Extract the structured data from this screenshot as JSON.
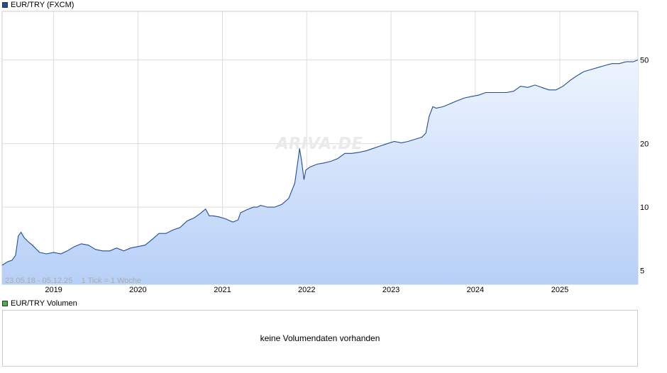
{
  "legend": {
    "main": "EUR/TRY (FXCM)",
    "main_color": "#1f4e9c",
    "volume": "EUR/TRY Volumen",
    "volume_color": "#4caf50"
  },
  "watermark": "ARIVA.DE",
  "info_text": "23.05.18 - 05.12.25    1 Tick = 1 Woche",
  "volume_panel": {
    "message": "keine Volumendaten vorhanden"
  },
  "colors": {
    "line": "#1f4e9c",
    "fill_top": "#eef4fe",
    "fill_bottom": "#b7d0f7",
    "grid": "#dddddd"
  },
  "chart_data": {
    "type": "area",
    "yscale": "log",
    "ylim": [
      4.3,
      85
    ],
    "y_ticks": [
      5,
      10,
      20,
      50
    ],
    "xlim": [
      "2018-05-23",
      "2025-12-05"
    ],
    "x_ticks": [
      {
        "label": "2019",
        "date": "2019-01-01"
      },
      {
        "label": "2020",
        "date": "2020-01-01"
      },
      {
        "label": "2021",
        "date": "2021-01-01"
      },
      {
        "label": "2022",
        "date": "2022-01-01"
      },
      {
        "label": "2023",
        "date": "2023-01-01"
      },
      {
        "label": "2024",
        "date": "2024-01-01"
      },
      {
        "label": "2025",
        "date": "2025-01-01"
      }
    ],
    "series": [
      {
        "x": [
          "2018-05-23",
          "2018-06-15",
          "2018-07-05",
          "2018-07-20",
          "2018-08-01",
          "2018-08-13",
          "2018-08-25",
          "2018-09-10",
          "2018-10-01",
          "2018-11-01",
          "2018-12-01",
          "2019-01-01",
          "2019-02-01",
          "2019-03-01",
          "2019-04-01",
          "2019-05-01",
          "2019-06-01",
          "2019-07-01",
          "2019-08-01",
          "2019-09-01",
          "2019-10-01",
          "2019-11-01",
          "2019-12-01",
          "2020-01-01",
          "2020-02-01",
          "2020-03-01",
          "2020-04-01",
          "2020-05-01",
          "2020-06-01",
          "2020-07-01",
          "2020-08-01",
          "2020-09-01",
          "2020-10-01",
          "2020-10-20",
          "2020-11-05",
          "2020-11-20",
          "2020-12-15",
          "2021-01-15",
          "2021-02-15",
          "2021-03-10",
          "2021-03-20",
          "2021-04-15",
          "2021-05-15",
          "2021-06-01",
          "2021-06-15",
          "2021-07-15",
          "2021-08-15",
          "2021-09-15",
          "2021-10-15",
          "2021-11-10",
          "2021-11-23",
          "2021-12-01",
          "2021-12-10",
          "2021-12-20",
          "2021-12-28",
          "2022-01-15",
          "2022-02-15",
          "2022-03-15",
          "2022-04-15",
          "2022-05-15",
          "2022-06-15",
          "2022-07-15",
          "2022-08-15",
          "2022-09-15",
          "2022-10-15",
          "2022-11-15",
          "2022-12-15",
          "2023-01-15",
          "2023-02-15",
          "2023-03-15",
          "2023-04-15",
          "2023-05-15",
          "2023-06-01",
          "2023-06-15",
          "2023-07-01",
          "2023-07-15",
          "2023-08-15",
          "2023-09-15",
          "2023-10-15",
          "2023-11-15",
          "2023-12-15",
          "2024-01-15",
          "2024-02-15",
          "2024-03-15",
          "2024-04-15",
          "2024-05-15",
          "2024-06-15",
          "2024-07-15",
          "2024-08-15",
          "2024-09-15",
          "2024-10-15",
          "2024-11-15",
          "2024-12-15",
          "2025-01-15",
          "2025-02-15",
          "2025-03-15",
          "2025-04-15",
          "2025-05-15",
          "2025-06-15",
          "2025-07-15",
          "2025-08-15",
          "2025-09-15",
          "2025-10-15",
          "2025-11-15",
          "2025-12-05"
        ],
        "y": [
          5.3,
          5.5,
          5.6,
          5.9,
          7.3,
          7.6,
          7.2,
          6.9,
          6.6,
          6.1,
          6.0,
          6.1,
          6.0,
          6.2,
          6.5,
          6.7,
          6.6,
          6.3,
          6.2,
          6.2,
          6.4,
          6.2,
          6.4,
          6.5,
          6.6,
          7.0,
          7.5,
          7.5,
          7.8,
          8.0,
          8.6,
          8.9,
          9.4,
          9.8,
          9.1,
          9.1,
          9.0,
          8.8,
          8.5,
          8.7,
          9.4,
          9.7,
          10.0,
          10.0,
          10.2,
          10.0,
          10.0,
          10.3,
          11.0,
          13.0,
          16.3,
          19.0,
          16.5,
          13.5,
          15.0,
          15.5,
          16.0,
          16.2,
          16.5,
          17.0,
          18.0,
          18.0,
          18.2,
          18.5,
          19.0,
          19.5,
          20.0,
          20.5,
          20.2,
          20.5,
          21.0,
          21.5,
          22.5,
          27.0,
          30.0,
          29.5,
          30.0,
          31.0,
          32.0,
          33.0,
          33.5,
          34.0,
          35.0,
          35.0,
          35.0,
          35.0,
          35.5,
          37.5,
          37.0,
          38.0,
          37.0,
          36.0,
          36.0,
          37.5,
          40.0,
          42.0,
          44.0,
          45.0,
          46.0,
          47.0,
          48.0,
          48.0,
          49.0,
          49.0,
          50.0
        ]
      }
    ]
  }
}
